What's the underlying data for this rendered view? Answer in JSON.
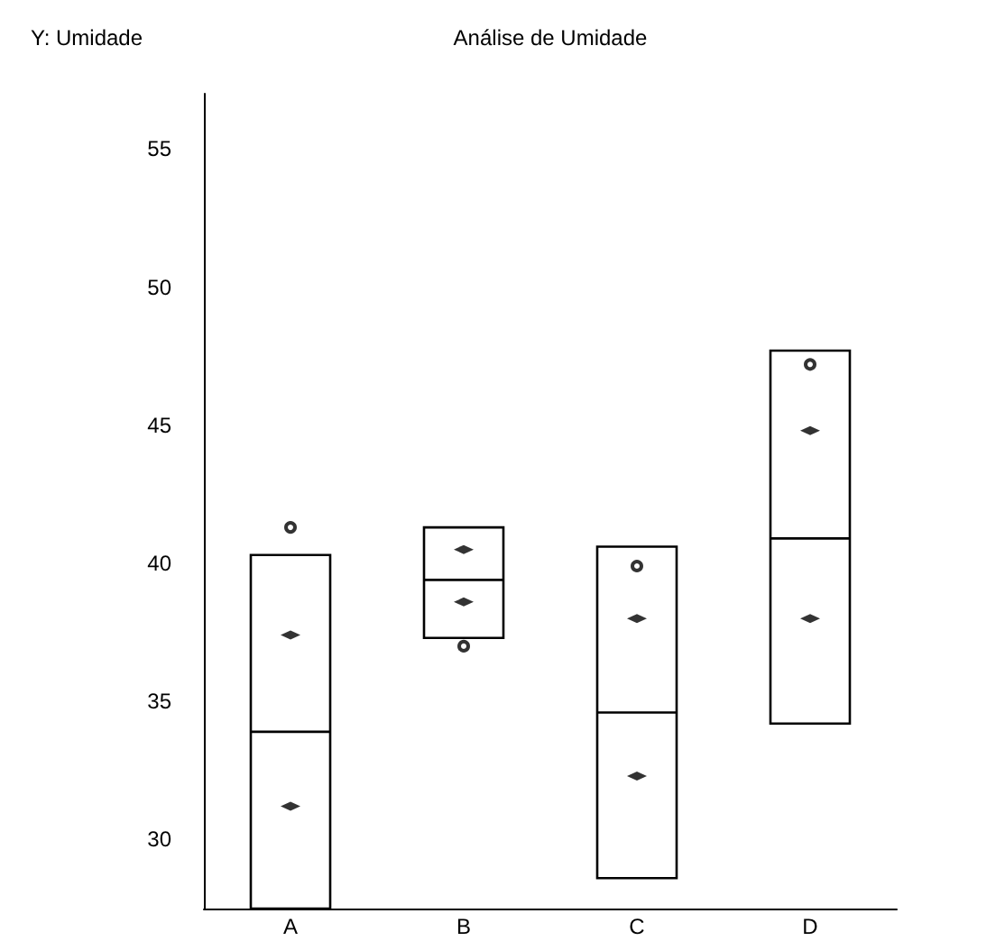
{
  "chart_data": {
    "type": "box",
    "title": "Análise de Umidade",
    "ylabel": "Y: Umidade",
    "categories": [
      "A",
      "B",
      "C",
      "D"
    ],
    "boxes": [
      {
        "low": 27.5,
        "q1": 27.5,
        "median": 33.9,
        "q3": 40.3,
        "high": 40.3,
        "outliers": [
          41.3
        ]
      },
      {
        "low": 37.3,
        "q1": 37.3,
        "median": 39.4,
        "q3": 41.3,
        "high": 41.3,
        "outliers": [
          37.0
        ]
      },
      {
        "low": 28.6,
        "q1": 28.6,
        "median": 34.6,
        "q3": 40.6,
        "high": 40.6,
        "outliers": [
          39.9
        ]
      },
      {
        "low": 34.2,
        "q1": 34.2,
        "median": 40.9,
        "q3": 47.7,
        "high": 47.7,
        "outliers": [
          47.2
        ]
      }
    ],
    "series": [
      {
        "type": "scatter",
        "marker": "diamond",
        "color": "#000000",
        "x": [
          "A",
          "A",
          "B",
          "B",
          "C",
          "C",
          "D",
          "D"
        ],
        "values": [
          37.4,
          31.2,
          40.5,
          38.6,
          38.0,
          32.3,
          44.8,
          38.0
        ]
      }
    ],
    "color": "#000000",
    "ylim": [
      27.5,
      57
    ],
    "yticks": [
      30,
      35,
      40,
      45,
      50,
      55
    ],
    "grid": false
  }
}
